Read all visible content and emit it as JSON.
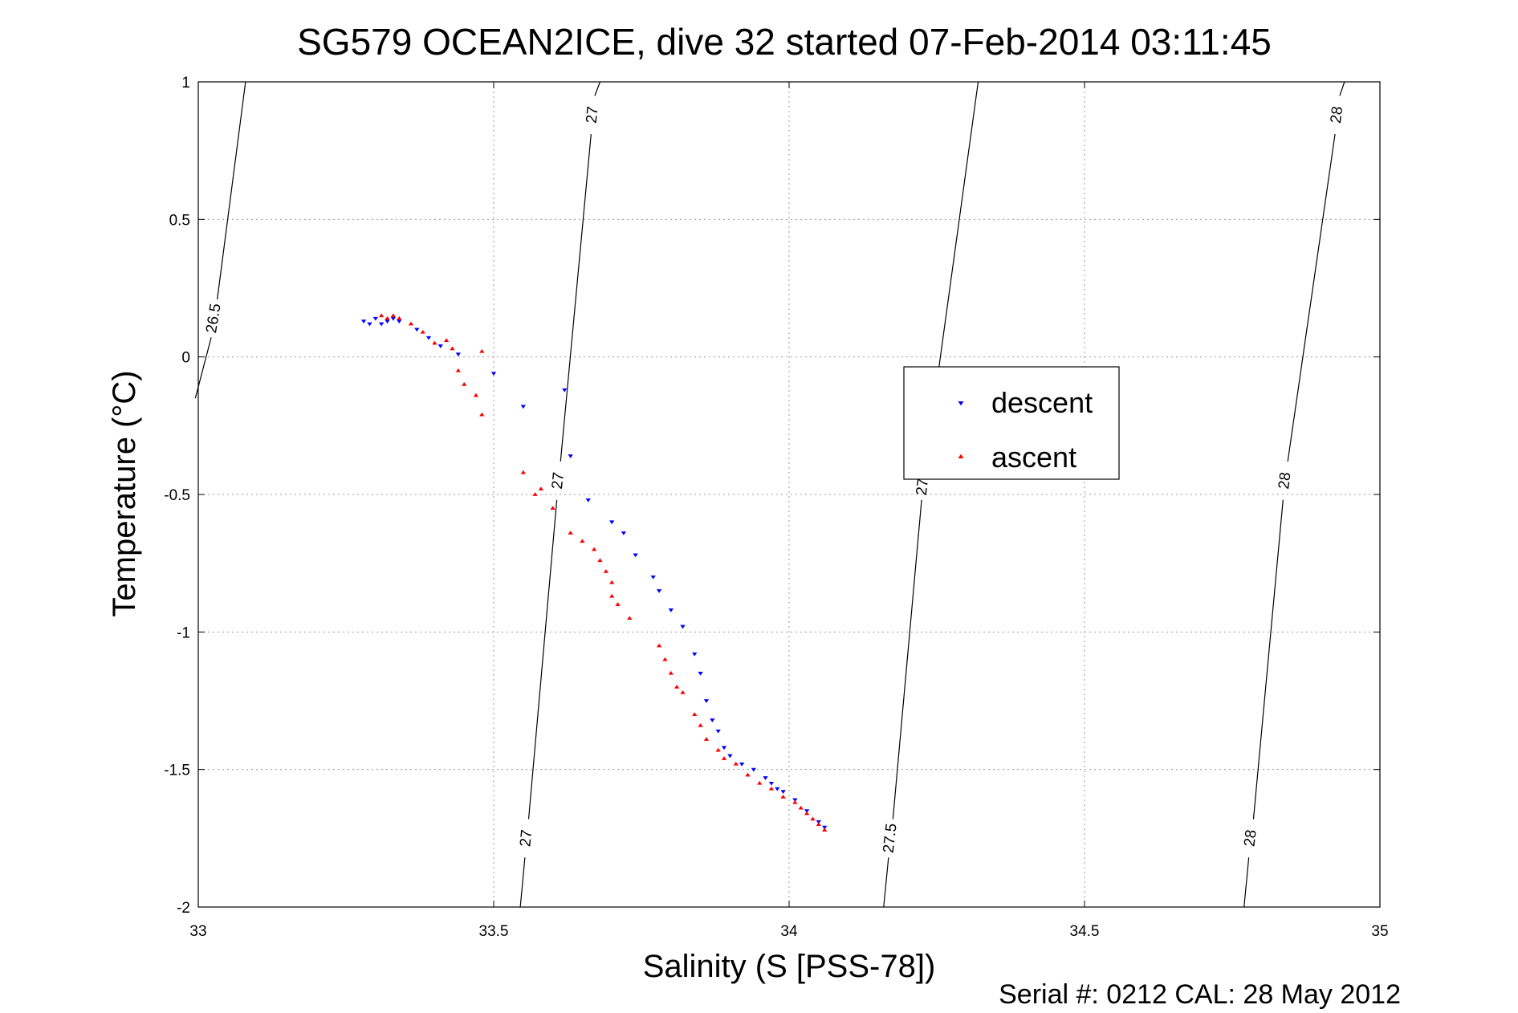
{
  "chart_data": {
    "type": "scatter",
    "title": "SG579 OCEAN2ICE, dive 32 started 07-Feb-2014 03:11:45",
    "xlabel": "Salinity (S [PSS-78])",
    "ylabel": "Temperature (°C)",
    "xlim": [
      33,
      35
    ],
    "ylim": [
      -2,
      1
    ],
    "xticks": [
      "33",
      "33.5",
      "34",
      "34.5",
      "35"
    ],
    "yticks": [
      "1",
      "0.5",
      "0",
      "-0.5",
      "-1",
      "-1.5",
      "-2"
    ],
    "grid": true,
    "legend": {
      "placement": "center-right",
      "entries": [
        "descent",
        "ascent"
      ]
    },
    "footer": "Serial #: 0212  CAL: 28 May 2012",
    "colors": {
      "descent": "#0000ff",
      "ascent": "#ff0000"
    },
    "isopycnals": [
      {
        "label": "26.5",
        "points": [
          [
            32.995,
            -0.15
          ],
          [
            33.08,
            1.0
          ]
        ],
        "label_positions": [
          [
            33.027,
            0.14
          ]
        ]
      },
      {
        "label": "27",
        "points": [
          [
            33.545,
            -2.0
          ],
          [
            33.68,
            1.0
          ]
        ],
        "label_positions": [
          [
            33.556,
            -1.75
          ],
          [
            33.61,
            -0.45
          ],
          [
            33.668,
            0.88
          ]
        ]
      },
      {
        "label": "27.5",
        "points": [
          [
            34.16,
            -2.0
          ],
          [
            34.32,
            1.0
          ]
        ],
        "label_positions": [
          [
            34.172,
            -1.75
          ],
          [
            34.228,
            -0.45
          ]
        ]
      },
      {
        "label": "28",
        "points": [
          [
            34.77,
            -2.0
          ],
          [
            34.94,
            1.0
          ]
        ],
        "label_positions": [
          [
            34.782,
            -1.75
          ],
          [
            34.84,
            -0.45
          ],
          [
            34.928,
            0.88
          ]
        ]
      }
    ],
    "series": [
      {
        "name": "descent",
        "marker": "triangle-down",
        "points": [
          [
            33.28,
            0.13
          ],
          [
            33.29,
            0.12
          ],
          [
            33.3,
            0.14
          ],
          [
            33.31,
            0.12
          ],
          [
            33.32,
            0.13
          ],
          [
            33.33,
            0.14
          ],
          [
            33.34,
            0.13
          ],
          [
            33.37,
            0.1
          ],
          [
            33.39,
            0.07
          ],
          [
            33.41,
            0.04
          ],
          [
            33.44,
            0.01
          ],
          [
            33.5,
            -0.06
          ],
          [
            33.55,
            -0.18
          ],
          [
            33.62,
            -0.12
          ],
          [
            33.63,
            -0.36
          ],
          [
            33.66,
            -0.52
          ],
          [
            33.7,
            -0.6
          ],
          [
            33.72,
            -0.64
          ],
          [
            33.74,
            -0.72
          ],
          [
            33.77,
            -0.8
          ],
          [
            33.78,
            -0.85
          ],
          [
            33.8,
            -0.92
          ],
          [
            33.82,
            -0.98
          ],
          [
            33.84,
            -1.08
          ],
          [
            33.85,
            -1.15
          ],
          [
            33.86,
            -1.25
          ],
          [
            33.87,
            -1.32
          ],
          [
            33.88,
            -1.36
          ],
          [
            33.89,
            -1.42
          ],
          [
            33.9,
            -1.45
          ],
          [
            33.92,
            -1.48
          ],
          [
            33.94,
            -1.5
          ],
          [
            33.96,
            -1.53
          ],
          [
            33.97,
            -1.55
          ],
          [
            33.98,
            -1.57
          ],
          [
            33.99,
            -1.58
          ],
          [
            34.01,
            -1.61
          ],
          [
            34.03,
            -1.65
          ],
          [
            34.05,
            -1.69
          ],
          [
            34.06,
            -1.71
          ]
        ]
      },
      {
        "name": "ascent",
        "marker": "triangle-up",
        "points": [
          [
            33.31,
            0.15
          ],
          [
            33.32,
            0.14
          ],
          [
            33.33,
            0.15
          ],
          [
            33.34,
            0.14
          ],
          [
            33.36,
            0.12
          ],
          [
            33.38,
            0.09
          ],
          [
            33.4,
            0.05
          ],
          [
            33.42,
            0.06
          ],
          [
            33.43,
            0.03
          ],
          [
            33.44,
            -0.05
          ],
          [
            33.45,
            -0.1
          ],
          [
            33.47,
            -0.14
          ],
          [
            33.48,
            -0.21
          ],
          [
            33.48,
            0.02
          ],
          [
            33.55,
            -0.42
          ],
          [
            33.57,
            -0.5
          ],
          [
            33.58,
            -0.48
          ],
          [
            33.6,
            -0.55
          ],
          [
            33.63,
            -0.64
          ],
          [
            33.65,
            -0.67
          ],
          [
            33.67,
            -0.7
          ],
          [
            33.68,
            -0.74
          ],
          [
            33.69,
            -0.78
          ],
          [
            33.7,
            -0.82
          ],
          [
            33.7,
            -0.87
          ],
          [
            33.71,
            -0.9
          ],
          [
            33.73,
            -0.95
          ],
          [
            33.78,
            -1.05
          ],
          [
            33.79,
            -1.1
          ],
          [
            33.8,
            -1.15
          ],
          [
            33.81,
            -1.2
          ],
          [
            33.82,
            -1.22
          ],
          [
            33.84,
            -1.3
          ],
          [
            33.85,
            -1.34
          ],
          [
            33.86,
            -1.39
          ],
          [
            33.88,
            -1.43
          ],
          [
            33.89,
            -1.46
          ],
          [
            33.91,
            -1.48
          ],
          [
            33.93,
            -1.52
          ],
          [
            33.95,
            -1.55
          ],
          [
            33.97,
            -1.57
          ],
          [
            33.99,
            -1.6
          ],
          [
            34.01,
            -1.62
          ],
          [
            34.02,
            -1.64
          ],
          [
            34.03,
            -1.66
          ],
          [
            34.04,
            -1.68
          ],
          [
            34.05,
            -1.7
          ],
          [
            34.06,
            -1.72
          ]
        ]
      }
    ]
  }
}
